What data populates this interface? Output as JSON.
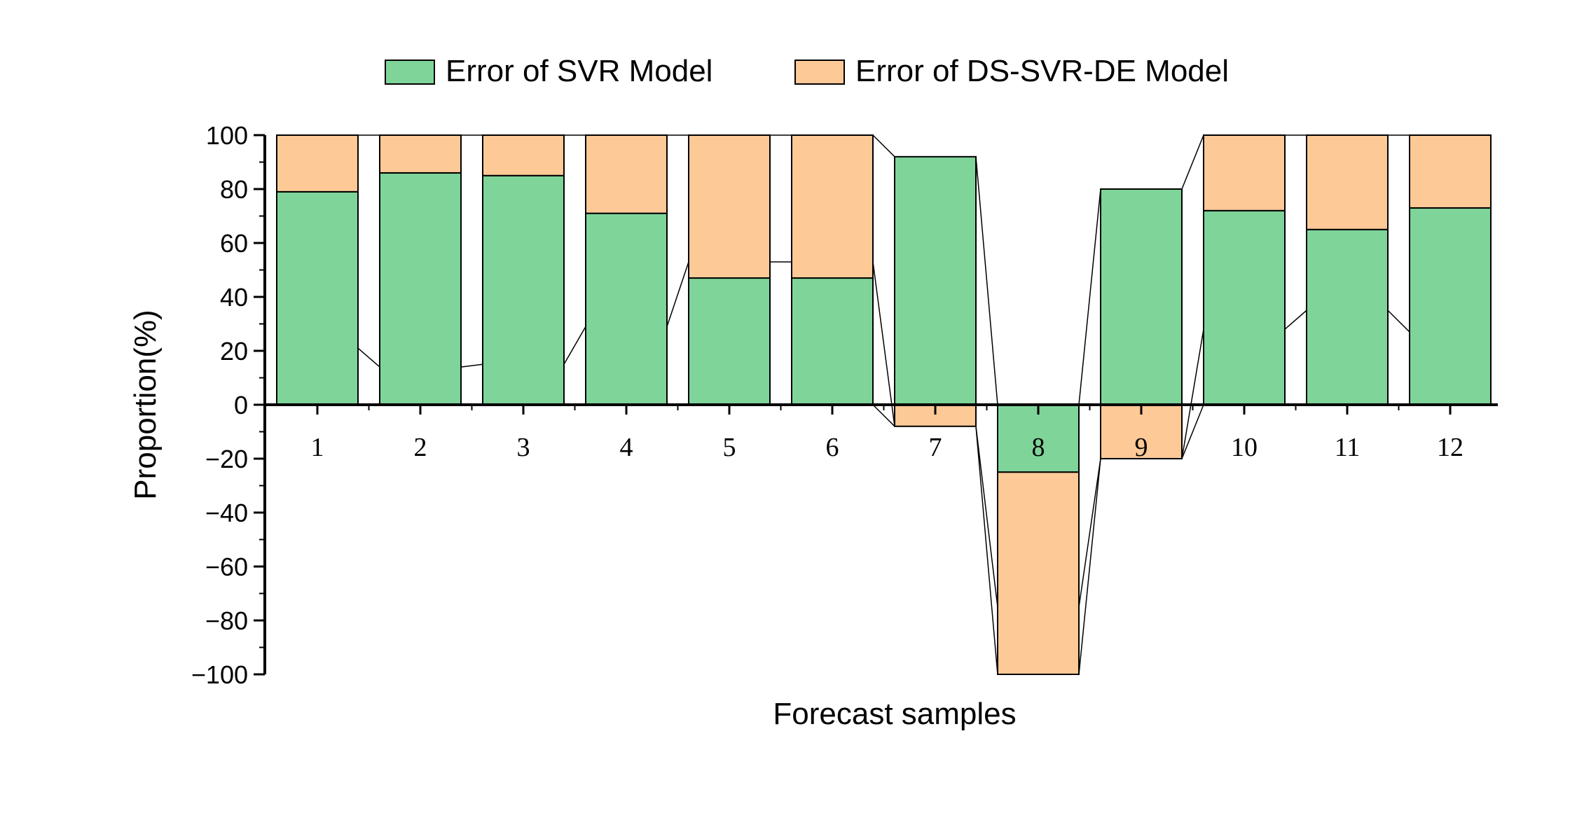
{
  "chart_data": {
    "type": "bar",
    "stacked": true,
    "title": "",
    "xlabel": "Forecast samples",
    "ylabel": "Proportion(%)",
    "ylim": [
      -100,
      100
    ],
    "yticks": [
      100,
      80,
      60,
      40,
      20,
      0,
      -20,
      -40,
      -60,
      -80,
      -100
    ],
    "ytick_labels": [
      "100",
      "80",
      "60",
      "40",
      "20",
      "0",
      "−20",
      "−40",
      "−60",
      "−80",
      "−100"
    ],
    "categories": [
      "1",
      "2",
      "3",
      "4",
      "5",
      "6",
      "7",
      "8",
      "9",
      "10",
      "11",
      "12"
    ],
    "series": [
      {
        "name": "Error of SVR Model",
        "color": "#7fd49a",
        "values": [
          79,
          86,
          85,
          71,
          47,
          47,
          92,
          -25,
          80,
          72,
          65,
          73
        ]
      },
      {
        "name": "Error of DS-SVR-DE Model",
        "color": "#fdc996",
        "values": [
          21,
          14,
          15,
          29,
          53,
          53,
          -8,
          -75,
          -20,
          28,
          35,
          27
        ]
      }
    ],
    "legend_position": "top",
    "grid": false
  }
}
